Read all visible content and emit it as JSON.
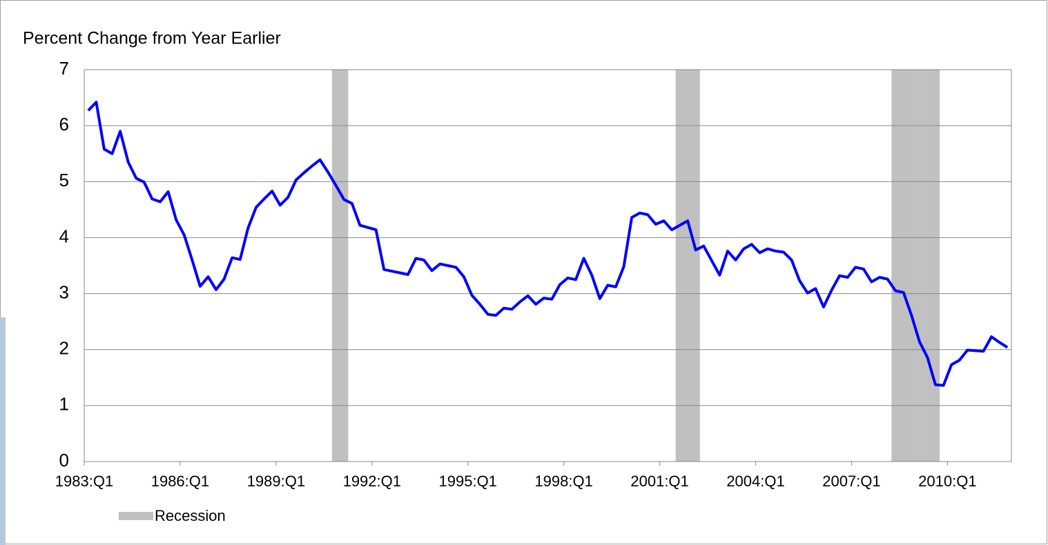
{
  "chart_data": {
    "type": "line",
    "title": "Percent Change from Year Earlier",
    "categories": [
      "1983:Q1",
      null,
      null,
      null,
      null,
      null,
      null,
      null,
      null,
      null,
      null,
      null,
      "1986:Q1",
      null,
      null,
      null,
      null,
      null,
      null,
      null,
      null,
      null,
      null,
      null,
      "1989:Q1",
      null,
      null,
      null,
      null,
      null,
      null,
      null,
      null,
      null,
      null,
      null,
      "1992:Q1",
      null,
      null,
      null,
      null,
      null,
      null,
      null,
      null,
      null,
      null,
      null,
      "1995:Q1",
      null,
      null,
      null,
      null,
      null,
      null,
      null,
      null,
      null,
      null,
      null,
      "1998:Q1",
      null,
      null,
      null,
      null,
      null,
      null,
      null,
      null,
      null,
      null,
      null,
      "2001:Q1",
      null,
      null,
      null,
      null,
      null,
      null,
      null,
      null,
      null,
      null,
      null,
      "2004:Q1",
      null,
      null,
      null,
      null,
      null,
      null,
      null,
      null,
      null,
      null,
      null,
      "2007:Q1",
      null,
      null,
      null,
      null,
      null,
      null,
      null,
      null,
      null,
      null,
      null,
      "2010:Q1",
      null,
      null,
      null,
      null,
      null,
      null,
      null
    ],
    "series": [
      {
        "type": "line",
        "color": "#0000ff",
        "values": [
          6.27,
          6.42,
          5.58,
          5.5,
          5.9,
          5.35,
          5.06,
          4.99,
          4.69,
          4.64,
          4.82,
          4.32,
          4.05,
          3.6,
          3.13,
          3.3,
          3.07,
          3.26,
          3.64,
          3.61,
          4.17,
          4.54,
          4.69,
          4.83,
          4.58,
          4.72,
          5.03,
          5.16,
          5.28,
          5.39,
          5.17,
          4.93,
          4.68,
          4.61,
          4.22,
          4.18,
          4.14,
          3.43,
          3.4,
          3.37,
          3.34,
          3.63,
          3.6,
          3.41,
          3.53,
          3.5,
          3.47,
          3.3,
          2.97,
          2.81,
          2.63,
          2.61,
          2.74,
          2.72,
          2.85,
          2.96,
          2.81,
          2.92,
          2.9,
          3.16,
          3.28,
          3.25,
          3.63,
          3.33,
          2.91,
          3.15,
          3.12,
          3.48,
          4.36,
          4.44,
          4.41,
          4.24,
          4.3,
          4.14,
          4.22,
          4.3,
          3.78,
          3.85,
          3.59,
          3.33,
          3.76,
          3.6,
          3.8,
          3.88,
          3.73,
          3.8,
          3.76,
          3.74,
          3.6,
          3.23,
          3.01,
          3.09,
          2.76,
          3.06,
          3.32,
          3.29,
          3.47,
          3.44,
          3.21,
          3.29,
          3.26,
          3.05,
          3.02,
          2.61,
          2.14,
          1.86,
          1.37,
          1.36,
          1.73,
          1.81,
          1.99,
          1.98,
          1.97,
          2.23,
          2.13,
          2.04
        ]
      },
      {
        "type": "bar",
        "name": "Recession",
        "color": "#c0c0c0",
        "values": [
          null,
          null,
          null,
          null,
          null,
          null,
          null,
          null,
          null,
          null,
          null,
          null,
          null,
          null,
          null,
          null,
          null,
          null,
          null,
          null,
          null,
          null,
          null,
          null,
          null,
          null,
          null,
          null,
          null,
          null,
          null,
          7,
          7,
          null,
          null,
          null,
          null,
          null,
          null,
          null,
          null,
          null,
          null,
          null,
          null,
          null,
          null,
          null,
          null,
          null,
          null,
          null,
          null,
          null,
          null,
          null,
          null,
          null,
          null,
          null,
          null,
          null,
          null,
          null,
          null,
          null,
          null,
          null,
          null,
          null,
          null,
          null,
          null,
          null,
          7,
          7,
          7,
          null,
          null,
          null,
          null,
          null,
          null,
          null,
          null,
          null,
          null,
          null,
          null,
          null,
          null,
          null,
          null,
          null,
          null,
          null,
          null,
          null,
          null,
          null,
          null,
          7,
          7,
          7,
          7,
          7,
          7,
          null,
          null,
          null,
          null,
          null,
          null,
          null,
          null,
          null
        ]
      }
    ],
    "ylim": [
      0,
      7
    ],
    "yticks": [
      0,
      1,
      2,
      3,
      4,
      5,
      6,
      7
    ],
    "grid": true
  }
}
